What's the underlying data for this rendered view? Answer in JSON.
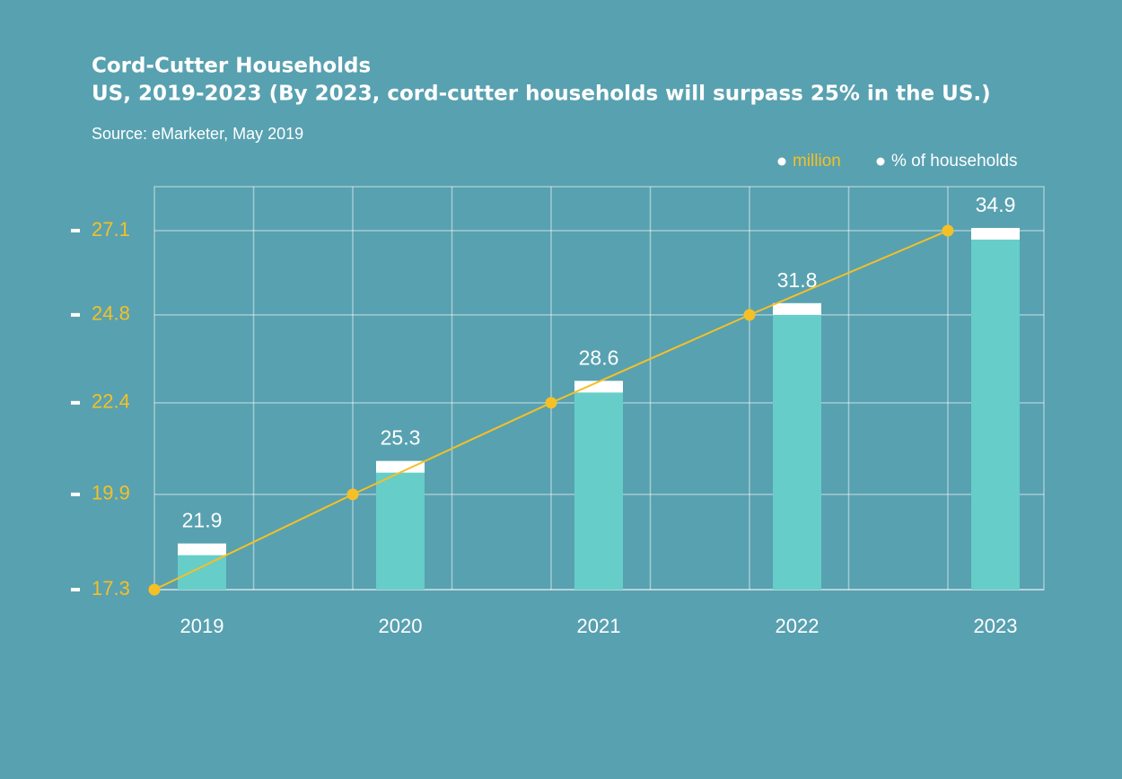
{
  "chart_data": {
    "type": "combo",
    "title": "Cord-Cutter Households",
    "subtitle": "US, 2019-2023 (By 2023, cord-cutter households will surpass 25% in the US.)",
    "source": "Source: eMarketer, May 2019",
    "categories": [
      "2019",
      "2020",
      "2021",
      "2022",
      "2023"
    ],
    "series": [
      {
        "name": "million",
        "type": "bar",
        "axis": "y2",
        "color": "#66cdc9",
        "cap_color": "#ffffff",
        "label_color": "#f5c026",
        "values": [
          21.9,
          25.3,
          28.6,
          31.8,
          34.9
        ]
      },
      {
        "name": "% of households",
        "type": "line",
        "color": "#f5c026",
        "label_color": "#ffffff",
        "values": [
          17.3,
          19.9,
          22.4,
          24.8,
          27.1
        ]
      }
    ],
    "ylim": [
      17.3,
      28.3
    ],
    "yticks": [
      17.3,
      19.9,
      22.4,
      24.8,
      27.1
    ],
    "y2lim": [
      20,
      36.6
    ],
    "grid": true,
    "legend": "top-right"
  }
}
